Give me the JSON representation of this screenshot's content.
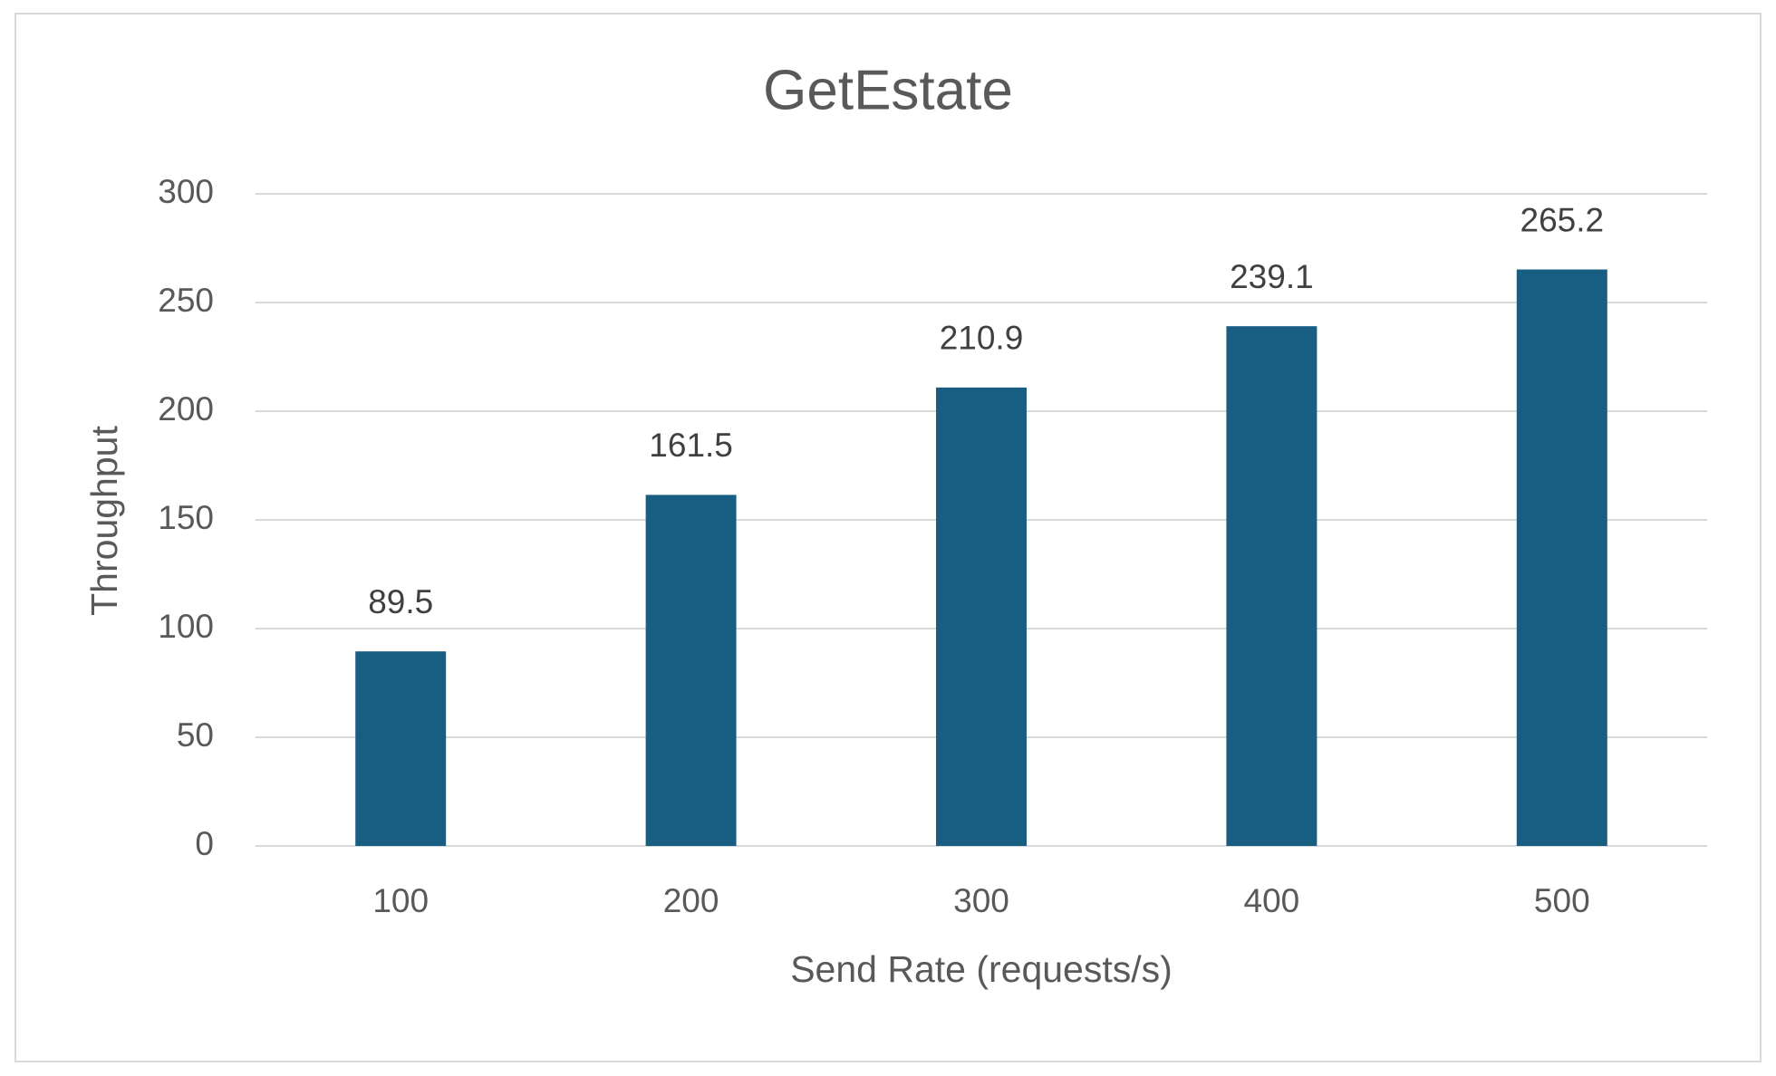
{
  "chart_data": {
    "type": "bar",
    "title": "GetEstate",
    "x_label": "Send Rate (requests/s)",
    "y_label": "Throughput",
    "categories": [
      "100",
      "200",
      "300",
      "400",
      "500"
    ],
    "values": [
      89.5,
      161.5,
      210.9,
      239.1,
      265.2
    ],
    "color": "#175e82",
    "ylim": [
      0,
      300
    ],
    "yticks": [
      0,
      50,
      100,
      150,
      200,
      250,
      300
    ],
    "grid": true
  }
}
